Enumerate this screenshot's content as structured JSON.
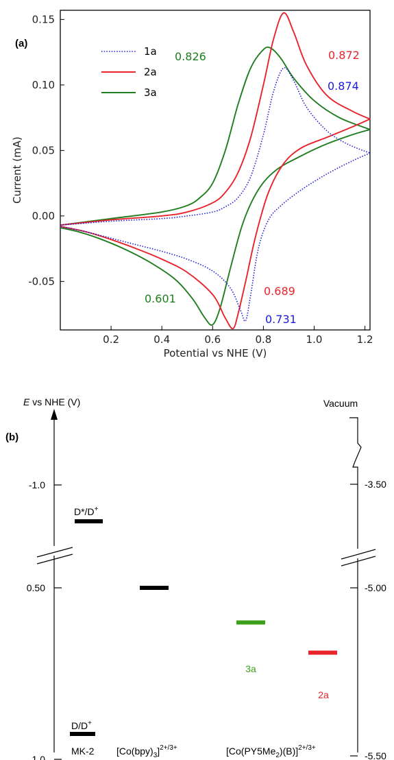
{
  "chart_data": [
    {
      "type": "line",
      "panel_label": "(a)",
      "xlabel": "Potential vs NHE (V)",
      "ylabel": "Current (mA)",
      "xlim": [
        0.0,
        1.22
      ],
      "ylim": [
        -0.087,
        0.157
      ],
      "x_ticks": [
        "0.2",
        "0.4",
        "0.6",
        "0.8",
        "1.0",
        "1.2"
      ],
      "y_ticks": [
        "0.15",
        "0.10",
        "0.05",
        "0.00",
        "-0.05"
      ],
      "legend_position": "top-left",
      "series": [
        {
          "name": "1a",
          "color": "#1a1adc",
          "style": "dotted",
          "forward": [
            [
              0.0,
              -0.007
            ],
            [
              0.2,
              -0.004
            ],
            [
              0.4,
              -0.002
            ],
            [
              0.5,
              0.0
            ],
            [
              0.6,
              0.003
            ],
            [
              0.65,
              0.007
            ],
            [
              0.7,
              0.014
            ],
            [
              0.75,
              0.03
            ],
            [
              0.8,
              0.062
            ],
            [
              0.84,
              0.095
            ],
            [
              0.88,
              0.113
            ],
            [
              0.92,
              0.103
            ],
            [
              0.97,
              0.083
            ],
            [
              1.05,
              0.065
            ],
            [
              1.13,
              0.055
            ],
            [
              1.22,
              0.048
            ]
          ],
          "reverse": [
            [
              1.22,
              0.048
            ],
            [
              1.15,
              0.042
            ],
            [
              1.05,
              0.032
            ],
            [
              0.95,
              0.02
            ],
            [
              0.87,
              0.008
            ],
            [
              0.82,
              -0.003
            ],
            [
              0.78,
              -0.025
            ],
            [
              0.75,
              -0.06
            ],
            [
              0.73,
              -0.08
            ],
            [
              0.71,
              -0.072
            ],
            [
              0.67,
              -0.055
            ],
            [
              0.6,
              -0.042
            ],
            [
              0.5,
              -0.033
            ],
            [
              0.4,
              -0.027
            ],
            [
              0.3,
              -0.022
            ],
            [
              0.2,
              -0.017
            ],
            [
              0.1,
              -0.012
            ],
            [
              0.0,
              -0.008
            ]
          ],
          "annotations": [
            {
              "x": 0.874,
              "y": 0.113,
              "label": "0.874"
            },
            {
              "x": 0.731,
              "y": -0.081,
              "label": "0.731"
            }
          ]
        },
        {
          "name": "2a",
          "color": "#e8232b",
          "style": "solid",
          "forward": [
            [
              0.0,
              -0.007
            ],
            [
              0.2,
              -0.003
            ],
            [
              0.4,
              0.0
            ],
            [
              0.5,
              0.003
            ],
            [
              0.6,
              0.01
            ],
            [
              0.65,
              0.018
            ],
            [
              0.7,
              0.033
            ],
            [
              0.75,
              0.06
            ],
            [
              0.8,
              0.1
            ],
            [
              0.84,
              0.135
            ],
            [
              0.88,
              0.155
            ],
            [
              0.92,
              0.14
            ],
            [
              0.97,
              0.115
            ],
            [
              1.05,
              0.092
            ],
            [
              1.15,
              0.08
            ],
            [
              1.22,
              0.074
            ]
          ],
          "reverse": [
            [
              1.22,
              0.074
            ],
            [
              1.15,
              0.068
            ],
            [
              1.05,
              0.06
            ],
            [
              0.95,
              0.052
            ],
            [
              0.88,
              0.04
            ],
            [
              0.82,
              0.018
            ],
            [
              0.77,
              -0.015
            ],
            [
              0.73,
              -0.05
            ],
            [
              0.7,
              -0.075
            ],
            [
              0.68,
              -0.086
            ],
            [
              0.65,
              -0.078
            ],
            [
              0.6,
              -0.06
            ],
            [
              0.5,
              -0.043
            ],
            [
              0.4,
              -0.033
            ],
            [
              0.3,
              -0.025
            ],
            [
              0.2,
              -0.018
            ],
            [
              0.1,
              -0.012
            ],
            [
              0.0,
              -0.008
            ]
          ],
          "annotations": [
            {
              "x": 0.872,
              "y": 0.155,
              "label": "0.872"
            },
            {
              "x": 0.689,
              "y": -0.085,
              "label": "0.689"
            }
          ]
        },
        {
          "name": "3a",
          "color": "#1e7d1e",
          "style": "solid",
          "forward": [
            [
              0.0,
              -0.007
            ],
            [
              0.2,
              -0.002
            ],
            [
              0.4,
              0.003
            ],
            [
              0.5,
              0.008
            ],
            [
              0.55,
              0.014
            ],
            [
              0.6,
              0.025
            ],
            [
              0.65,
              0.05
            ],
            [
              0.7,
              0.085
            ],
            [
              0.75,
              0.113
            ],
            [
              0.8,
              0.127
            ],
            [
              0.83,
              0.128
            ],
            [
              0.87,
              0.12
            ],
            [
              0.92,
              0.105
            ],
            [
              1.0,
              0.088
            ],
            [
              1.1,
              0.075
            ],
            [
              1.22,
              0.066
            ]
          ],
          "reverse": [
            [
              1.22,
              0.066
            ],
            [
              1.15,
              0.062
            ],
            [
              1.05,
              0.055
            ],
            [
              0.95,
              0.046
            ],
            [
              0.85,
              0.035
            ],
            [
              0.78,
              0.02
            ],
            [
              0.72,
              -0.005
            ],
            [
              0.67,
              -0.04
            ],
            [
              0.63,
              -0.07
            ],
            [
              0.6,
              -0.083
            ],
            [
              0.57,
              -0.078
            ],
            [
              0.52,
              -0.063
            ],
            [
              0.45,
              -0.048
            ],
            [
              0.35,
              -0.035
            ],
            [
              0.25,
              -0.025
            ],
            [
              0.15,
              -0.017
            ],
            [
              0.07,
              -0.012
            ],
            [
              0.0,
              -0.009
            ]
          ],
          "annotations": [
            {
              "x": 0.826,
              "y": 0.128,
              "label": "0.826"
            },
            {
              "x": 0.601,
              "y": -0.083,
              "label": "0.601"
            }
          ]
        }
      ]
    },
    {
      "type": "energy-level-diagram",
      "panel_label": "(b)",
      "left_axis_title_italic": "E",
      "left_axis_title_rest": " vs NHE (V)",
      "left_axis_ticks": [
        {
          "label": "-1.0",
          "value": -1.0
        },
        {
          "label": "0.50",
          "value": 0.5
        },
        {
          "label": "1.0",
          "value": 1.0
        }
      ],
      "right_axis_title": "Vacuum",
      "right_axis_ticks": [
        {
          "label": "-3.50",
          "value": -3.5
        },
        {
          "label": "-5.00",
          "value": -5.0
        },
        {
          "label": "-5.50",
          "value": -5.5
        }
      ],
      "levels": [
        {
          "label": "D*/D+",
          "value": -0.93,
          "color": "#000000",
          "group": "MK-2"
        },
        {
          "label": "D/D+",
          "value": 0.96,
          "color": "#000000",
          "group": "MK-2"
        },
        {
          "label": "",
          "value": 0.5,
          "color": "#000000",
          "group": "[Co(bpy)3]2+/3+"
        },
        {
          "label": "3a",
          "value": 0.601,
          "color": "#3aa01a",
          "group": "[Co(PY5Me2)(B)]2+/3+"
        },
        {
          "label": "2a",
          "value": 0.689,
          "color": "#e8232b",
          "group": "[Co(PY5Me2)(B)]2+/3+"
        }
      ],
      "group_labels": {
        "mk2": "MK-2",
        "cobpy_main": "[Co(bpy)",
        "cobpy_sub": "3",
        "cobpy_close": "]",
        "cobpy_sup": "2+/3+",
        "copy5_main": "[Co(PY5Me",
        "copy5_sub": "2",
        "copy5_rest": ")(B)]",
        "copy5_sup": "2+/3+"
      },
      "level_label_parts": {
        "dstar_main": "D*/D",
        "dstar_sup": "+",
        "d_main": "D/D",
        "d_sup": "+"
      }
    }
  ]
}
